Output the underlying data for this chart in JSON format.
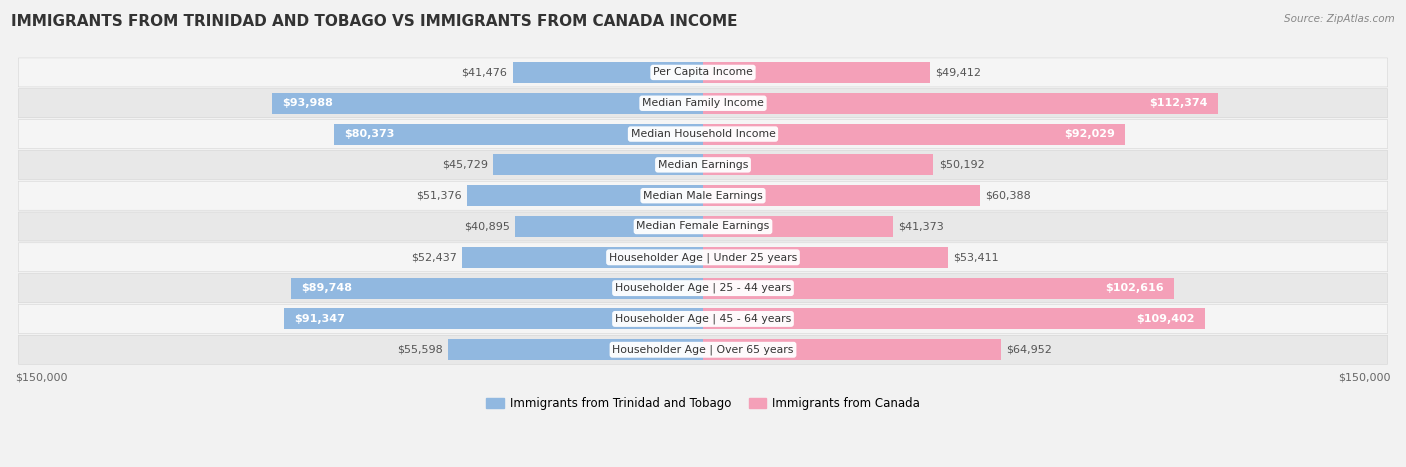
{
  "title": "IMMIGRANTS FROM TRINIDAD AND TOBAGO VS IMMIGRANTS FROM CANADA INCOME",
  "source": "Source: ZipAtlas.com",
  "categories": [
    "Per Capita Income",
    "Median Family Income",
    "Median Household Income",
    "Median Earnings",
    "Median Male Earnings",
    "Median Female Earnings",
    "Householder Age | Under 25 years",
    "Householder Age | 25 - 44 years",
    "Householder Age | 45 - 64 years",
    "Householder Age | Over 65 years"
  ],
  "left_values": [
    41476,
    93988,
    80373,
    45729,
    51376,
    40895,
    52437,
    89748,
    91347,
    55598
  ],
  "right_values": [
    49412,
    112374,
    92029,
    50192,
    60388,
    41373,
    53411,
    102616,
    109402,
    64952
  ],
  "left_labels": [
    "$41,476",
    "$93,988",
    "$80,373",
    "$45,729",
    "$51,376",
    "$40,895",
    "$52,437",
    "$89,748",
    "$91,347",
    "$55,598"
  ],
  "right_labels": [
    "$49,412",
    "$112,374",
    "$92,029",
    "$50,192",
    "$60,388",
    "$41,373",
    "$53,411",
    "$102,616",
    "$109,402",
    "$64,952"
  ],
  "max_value": 150000,
  "left_color": "#91b8e0",
  "right_color": "#f4a0b8",
  "left_legend": "Immigrants from Trinidad and Tobago",
  "right_legend": "Immigrants from Canada",
  "axis_label": "$150,000",
  "inside_threshold": 0.45,
  "title_fontsize": 11,
  "label_fontsize": 8,
  "cat_fontsize": 7.8,
  "axis_fontsize": 8
}
